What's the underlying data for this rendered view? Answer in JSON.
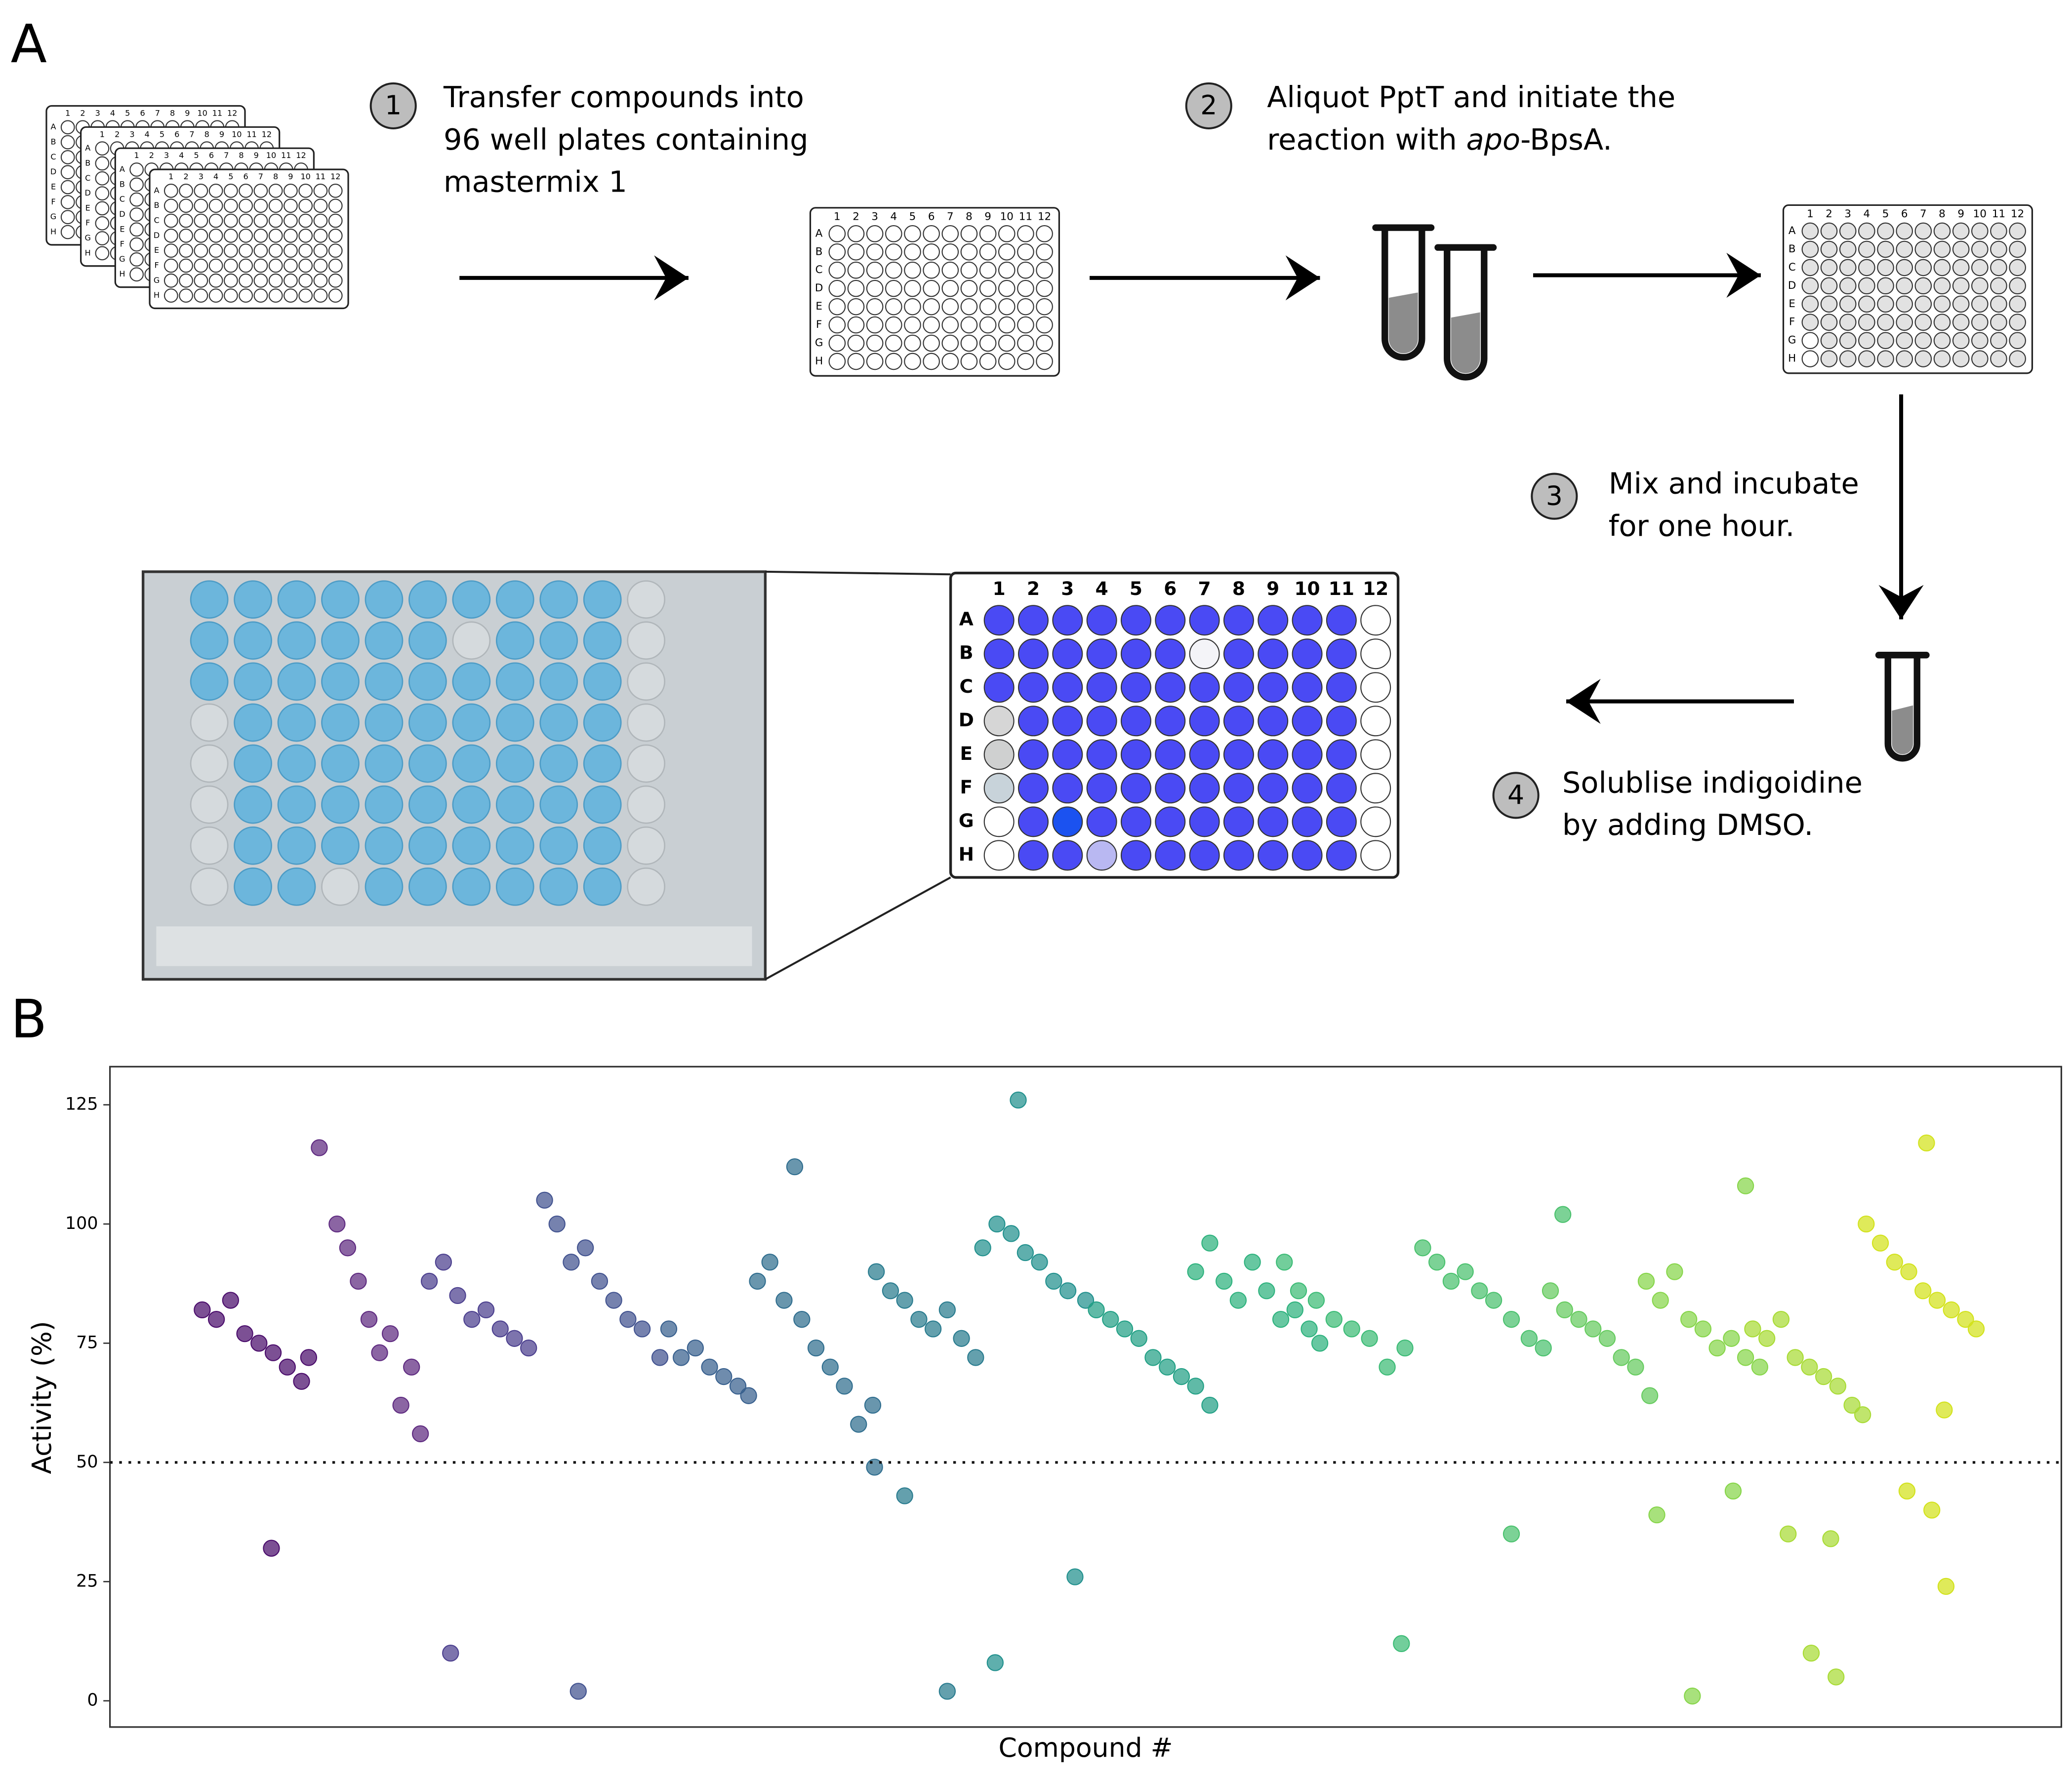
{
  "panels": {
    "a": "A",
    "b": "B"
  },
  "steps": [
    {
      "number": "1",
      "lines": [
        [
          "Transfer compounds into"
        ],
        [
          "96 well plates containing"
        ],
        [
          "mastermix 1"
        ]
      ]
    },
    {
      "number": "2",
      "lines": [
        [
          "Aliquot PptT and initiate the"
        ],
        [
          "reaction with ",
          "apo",
          "-BpsA."
        ]
      ]
    },
    {
      "number": "3",
      "lines": [
        [
          "Mix and incubate"
        ],
        [
          "for one hour."
        ]
      ]
    },
    {
      "number": "4",
      "lines": [
        [
          "Solublise indigoidine"
        ],
        [
          "by adding DMSO."
        ]
      ]
    }
  ],
  "plate": {
    "rows": [
      "A",
      "B",
      "C",
      "D",
      "E",
      "F",
      "G",
      "H"
    ],
    "cols": [
      "1",
      "2",
      "3",
      "4",
      "5",
      "6",
      "7",
      "8",
      "9",
      "10",
      "11",
      "12"
    ]
  },
  "chart_data": {
    "type": "scatter",
    "y_label": "Activity (%)",
    "x_label": "Compound #",
    "xlim": [
      0,
      1100
    ],
    "ylim": [
      -5.5,
      133
    ],
    "yticks": [
      0,
      25,
      50,
      75,
      100,
      125
    ],
    "threshold": 50,
    "series": [
      {
        "color": "#4a0c6b",
        "x": [
          52,
          60,
          68,
          76,
          84,
          92,
          100,
          108,
          112,
          91
        ],
        "values": [
          82,
          80,
          84,
          77,
          75,
          73,
          70,
          67,
          72,
          32
        ]
      },
      {
        "color": "#5e2a80",
        "x": [
          128,
          134,
          140,
          146,
          152,
          158,
          164,
          170,
          175,
          118
        ],
        "values": [
          100,
          95,
          88,
          80,
          73,
          77,
          62,
          70,
          56,
          116
        ]
      },
      {
        "color": "#4b3f8e",
        "x": [
          180,
          188,
          196,
          204,
          212,
          220,
          228,
          236,
          192
        ],
        "values": [
          88,
          92,
          85,
          80,
          82,
          78,
          76,
          74,
          10
        ]
      },
      {
        "color": "#41528f",
        "x": [
          245,
          252,
          260,
          268,
          276,
          284,
          292,
          300,
          310,
          264
        ],
        "values": [
          105,
          100,
          92,
          95,
          88,
          84,
          80,
          78,
          72,
          2
        ]
      },
      {
        "color": "#375f8d",
        "x": [
          315,
          322,
          330,
          338,
          346,
          354,
          360
        ],
        "values": [
          78,
          72,
          74,
          70,
          68,
          66,
          64
        ]
      },
      {
        "color": "#2f6d8e",
        "x": [
          365,
          372,
          380,
          390,
          398,
          406,
          414,
          422,
          430,
          386,
          431
        ],
        "values": [
          88,
          92,
          84,
          80,
          74,
          70,
          66,
          58,
          62,
          112,
          49
        ]
      },
      {
        "color": "#287b8e",
        "x": [
          432,
          440,
          448,
          456,
          464,
          472,
          480,
          488,
          448,
          472
        ],
        "values": [
          90,
          86,
          84,
          80,
          78,
          82,
          76,
          72,
          43,
          2
        ]
      },
      {
        "color": "#21908d",
        "x": [
          492,
          500,
          508,
          516,
          524,
          532,
          540,
          550,
          499,
          512,
          544
        ],
        "values": [
          95,
          100,
          98,
          94,
          92,
          88,
          86,
          84,
          8,
          126,
          26
        ]
      },
      {
        "color": "#22a085",
        "x": [
          556,
          564,
          572,
          580,
          588,
          596,
          604,
          612,
          620
        ],
        "values": [
          82,
          80,
          78,
          76,
          72,
          70,
          68,
          66,
          62
        ]
      },
      {
        "color": "#2db27d",
        "x": [
          612,
          620,
          628,
          636,
          644,
          652,
          660,
          668,
          676,
          682
        ],
        "values": [
          90,
          96,
          88,
          84,
          92,
          86,
          80,
          82,
          78,
          75
        ]
      },
      {
        "color": "#3bbb75",
        "x": [
          662,
          670,
          680,
          690,
          700,
          710,
          720,
          730,
          728
        ],
        "values": [
          92,
          86,
          84,
          80,
          78,
          76,
          70,
          74,
          12
        ]
      },
      {
        "color": "#4ac16d",
        "x": [
          740,
          748,
          756,
          764,
          772,
          780,
          790,
          800,
          808,
          790,
          819
        ],
        "values": [
          95,
          92,
          88,
          90,
          86,
          84,
          80,
          76,
          74,
          35,
          102
        ]
      },
      {
        "color": "#65cb5e",
        "x": [
          812,
          820,
          828,
          836,
          844,
          852,
          860,
          868
        ],
        "values": [
          86,
          82,
          80,
          78,
          76,
          72,
          70,
          64
        ]
      },
      {
        "color": "#86d549",
        "x": [
          866,
          874,
          882,
          890,
          898,
          906,
          914,
          922,
          930,
          892,
          872,
          915,
          922
        ],
        "values": [
          88,
          84,
          90,
          80,
          78,
          74,
          76,
          72,
          70,
          1,
          39,
          44,
          108
        ]
      },
      {
        "color": "#a8db34",
        "x": [
          926,
          934,
          942,
          950,
          958,
          966,
          974,
          982,
          988,
          959,
          973,
          970,
          946
        ],
        "values": [
          78,
          76,
          80,
          72,
          70,
          68,
          66,
          62,
          60,
          10,
          5,
          34,
          35
        ]
      },
      {
        "color": "#d2e21b",
        "x": [
          990,
          998,
          1006,
          1014,
          1022,
          1030,
          1038,
          1046,
          1052,
          1013,
          1027,
          1035,
          1024,
          1034
        ],
        "values": [
          100,
          96,
          92,
          90,
          86,
          84,
          82,
          80,
          78,
          44,
          40,
          24,
          117,
          61
        ]
      }
    ]
  }
}
